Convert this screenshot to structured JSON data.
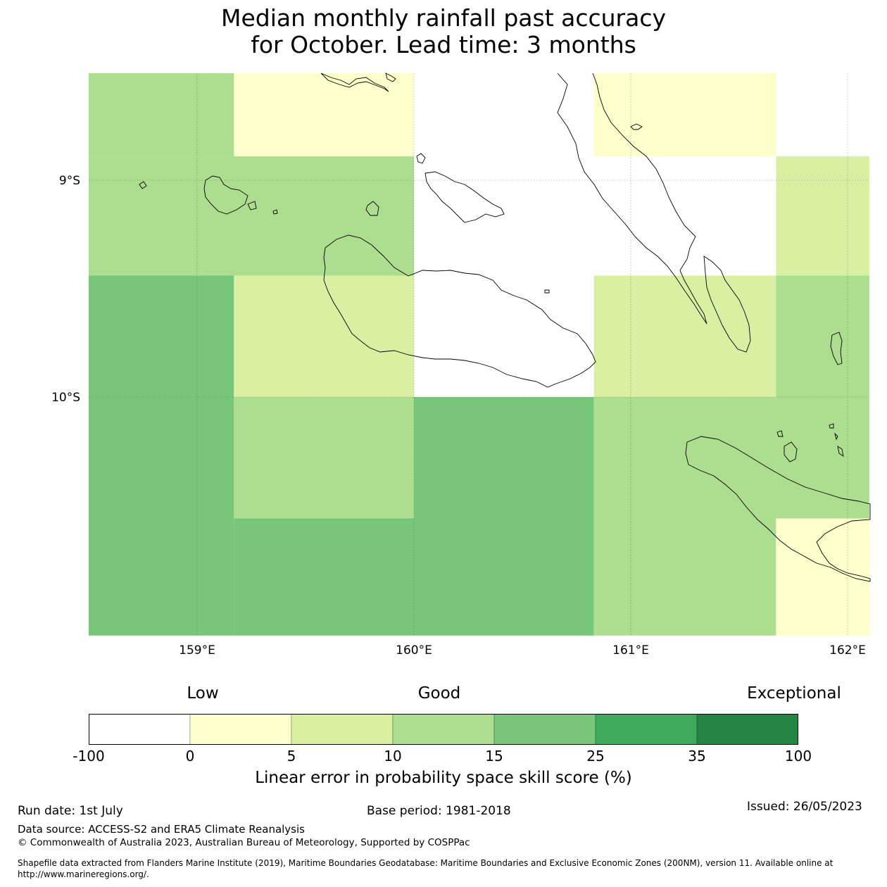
{
  "title_line1": "Median monthly rainfall past accuracy",
  "title_line2": "for October. Lead time: 3 months",
  "map": {
    "lon_range": [
      158.5,
      162.1
    ],
    "lat_range": [
      -11.1,
      -8.5
    ],
    "lon_ticks": [
      {
        "value": 159,
        "label": "159°E"
      },
      {
        "value": 160,
        "label": "160°E"
      },
      {
        "value": 161,
        "label": "161°E"
      },
      {
        "value": 162,
        "label": "162°E"
      }
    ],
    "lat_ticks": [
      {
        "value": -9,
        "label": "9°S"
      },
      {
        "value": -10,
        "label": "10°S"
      }
    ],
    "cells": [
      {
        "lon": [
          158.5,
          159.17
        ],
        "lat": [
          -8.5,
          -8.89
        ],
        "color": "#addd8e"
      },
      {
        "lon": [
          159.17,
          160.0
        ],
        "lat": [
          -8.5,
          -8.89
        ],
        "color": "#ffffcc"
      },
      {
        "lon": [
          160.83,
          161.67
        ],
        "lat": [
          -8.5,
          -8.89
        ],
        "color": "#ffffcc"
      },
      {
        "lon": [
          158.5,
          160.0
        ],
        "lat": [
          -8.89,
          -9.44
        ],
        "color": "#addd8e"
      },
      {
        "lon": [
          161.67,
          162.1
        ],
        "lat": [
          -8.89,
          -9.44
        ],
        "color": "#d9f0a3"
      },
      {
        "lon": [
          158.5,
          159.17
        ],
        "lat": [
          -9.44,
          -11.1
        ],
        "color": "#78c679"
      },
      {
        "lon": [
          159.17,
          160.0
        ],
        "lat": [
          -9.44,
          -10.0
        ],
        "color": "#d9f0a3"
      },
      {
        "lon": [
          160.83,
          161.67
        ],
        "lat": [
          -9.44,
          -10.0
        ],
        "color": "#d9f0a3"
      },
      {
        "lon": [
          161.67,
          162.1
        ],
        "lat": [
          -9.44,
          -10.0
        ],
        "color": "#addd8e"
      },
      {
        "lon": [
          159.17,
          160.0
        ],
        "lat": [
          -10.0,
          -10.56
        ],
        "color": "#addd8e"
      },
      {
        "lon": [
          159.17,
          160.0
        ],
        "lat": [
          -10.56,
          -11.1
        ],
        "color": "#78c679"
      },
      {
        "lon": [
          160.0,
          160.83
        ],
        "lat": [
          -10.0,
          -11.1
        ],
        "color": "#78c679"
      },
      {
        "lon": [
          160.83,
          161.67
        ],
        "lat": [
          -10.0,
          -11.1
        ],
        "color": "#addd8e"
      },
      {
        "lon": [
          161.67,
          162.1
        ],
        "lat": [
          -10.0,
          -10.56
        ],
        "color": "#addd8e"
      },
      {
        "lon": [
          161.67,
          162.1
        ],
        "lat": [
          -10.56,
          -11.1
        ],
        "color": "#ffffcc"
      }
    ]
  },
  "colorbar": {
    "categories": [
      {
        "from": -100,
        "to": 0,
        "color": "#ffffff"
      },
      {
        "from": 0,
        "to": 5,
        "color": "#ffffcc"
      },
      {
        "from": 5,
        "to": 10,
        "color": "#d9f0a3"
      },
      {
        "from": 10,
        "to": 15,
        "color": "#addd8e"
      },
      {
        "from": 15,
        "to": 25,
        "color": "#78c679"
      },
      {
        "from": 25,
        "to": 35,
        "color": "#41ab5d"
      },
      {
        "from": 35,
        "to": 100,
        "color": "#238443"
      }
    ],
    "tick_labels": [
      "-100",
      "0",
      "5",
      "10",
      "15",
      "25",
      "35",
      "100"
    ],
    "low_label": "Low",
    "good_label": "Good",
    "exceptional_label": "Exceptional",
    "title": "Linear error in probability space skill score (%)"
  },
  "footer": {
    "run_date": "Run date: 1st July",
    "base_period": "Base period: 1981-2018",
    "issued": "Issued: 26/05/2023",
    "data_source": "Data source: ACCESS-S2 and ERA5 Climate Reanalysis",
    "copyright": "© Commonwealth of Australia 2023, Australian Bureau of Meteorology, Supported by COSPPac",
    "shapefile_line1": "Shapefile data extracted from Flanders Marine Institute (2019), Maritime Boundaries Geodatabase: Maritime Boundaries and Exclusive Economic Zones (200NM), version 11. Available online at",
    "shapefile_line2": "http://www.marineregions.org/."
  }
}
